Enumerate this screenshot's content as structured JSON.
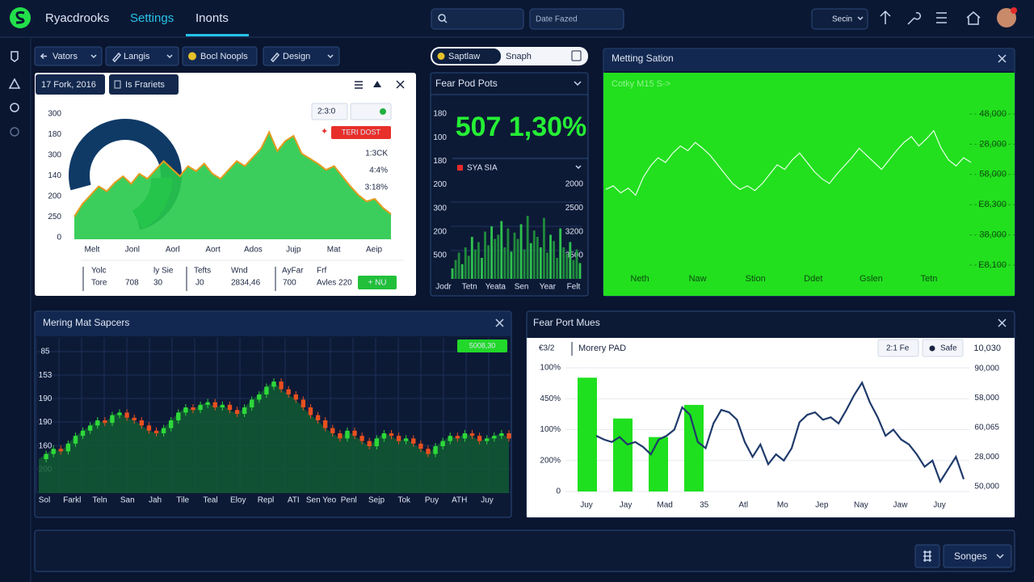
{
  "topbar": {
    "brand": "Ryacdrooks",
    "nav": [
      "Settings",
      "Inonts"
    ],
    "date_filter": "Date Fazed",
    "user_menu": "Secin"
  },
  "toolbar": [
    "Vators",
    "Langis",
    "Bocl Noopls",
    "Design"
  ],
  "search_pill": {
    "label": "Saptlaw",
    "field": "Snaph"
  },
  "panel_1": {
    "tabs": [
      "17 Fork, 2016",
      "Is Frariets"
    ],
    "button": "2:3:0",
    "badge": "TERI DOST",
    "legend": [
      "1:3CK",
      "4:4%",
      "3:18%"
    ],
    "y_labels": [
      "300",
      "180",
      "300",
      "140",
      "200",
      "250",
      "0"
    ],
    "chart": {
      "type": "area",
      "x_labels": [
        "Melt",
        "Jonl",
        "Aorl",
        "Aort",
        "Ados",
        "Jujp",
        "Mat",
        "Aeip"
      ],
      "ylim": [
        0,
        100
      ],
      "values": [
        18,
        28,
        35,
        42,
        38,
        45,
        50,
        44,
        52,
        48,
        55,
        62,
        56,
        50,
        58,
        54,
        60,
        52,
        48,
        55,
        62,
        58,
        65,
        72,
        85,
        70,
        78,
        82,
        68,
        64,
        60,
        55,
        58,
        50,
        42,
        35,
        30,
        32,
        25,
        20
      ]
    },
    "table": {
      "headers": [
        "Yolc",
        "ly Sie",
        "Tefts",
        "Wnd",
        "AyFar",
        "Frf"
      ],
      "row": [
        "Tore",
        "708",
        "30",
        "J0",
        "2834,46",
        "700",
        "Avles 220"
      ],
      "action": "+ NU"
    }
  },
  "panel_2": {
    "title": "Fear Pod Pots",
    "big_value": "507 1,30%",
    "legend": "SYA SIA",
    "y_labels_left": [
      "180",
      "100",
      "180",
      "200",
      "300",
      "200",
      "500"
    ],
    "y_labels_right": [
      "2000",
      "2500",
      "3200",
      "3500"
    ],
    "chart": {
      "type": "bar",
      "x_labels": [
        "Jodr",
        "Tetn",
        "Yeata",
        "Sen",
        "Year",
        "Felt"
      ],
      "ylim": [
        0,
        100
      ],
      "values": [
        10,
        18,
        25,
        14,
        30,
        22,
        40,
        28,
        35,
        20,
        45,
        32,
        50,
        38,
        42,
        55,
        30,
        48,
        26,
        44,
        38,
        52,
        28,
        60,
        34,
        46,
        40,
        30,
        58,
        25,
        42,
        36,
        20,
        48,
        30,
        24,
        35,
        18,
        28,
        15
      ]
    }
  },
  "panel_3": {
    "title": "Metting Sation",
    "subtitle": "Cotky M15 S->",
    "y_labels": [
      "48,000",
      "28,000",
      "58,000",
      "E8,300",
      "38,000",
      "E8,100"
    ],
    "chart": {
      "type": "line",
      "x_labels": [
        "Neth",
        "Naw",
        "Stion",
        "Ddet",
        "Gslen",
        "Tetn"
      ],
      "ylim": [
        0,
        100
      ],
      "values": [
        35,
        38,
        32,
        36,
        30,
        45,
        55,
        62,
        58,
        66,
        72,
        68,
        75,
        70,
        64,
        56,
        48,
        40,
        35,
        38,
        34,
        40,
        48,
        56,
        52,
        60,
        66,
        58,
        50,
        44,
        40,
        48,
        55,
        62,
        70,
        64,
        58,
        52,
        60,
        68,
        75,
        80,
        72,
        78,
        85,
        70,
        60,
        55,
        62,
        58
      ]
    }
  },
  "panel_4": {
    "title": "Mering Mat Sapcers",
    "badge": "5008,30",
    "y_labels": [
      "85",
      "153",
      "190",
      "190",
      "160",
      "200"
    ],
    "chart": {
      "type": "candlestick",
      "x_labels": [
        "Sol",
        "Farkl",
        "Teln",
        "San",
        "Jah",
        "Tile",
        "Teal",
        "Eloy",
        "Repl",
        "ATI",
        "Sen Yeo",
        "Penl",
        "Sejp",
        "Tok",
        "Puy",
        "ATH",
        "Juy"
      ],
      "ylim": [
        0,
        100
      ],
      "values": [
        20,
        24,
        28,
        26,
        32,
        38,
        42,
        46,
        50,
        48,
        54,
        56,
        52,
        50,
        46,
        42,
        40,
        44,
        50,
        56,
        60,
        58,
        62,
        64,
        60,
        62,
        58,
        55,
        60,
        66,
        70,
        76,
        80,
        74,
        70,
        66,
        60,
        54,
        50,
        44,
        40,
        36,
        42,
        38,
        34,
        30,
        36,
        40,
        38,
        34,
        36,
        32,
        28,
        24,
        30,
        34,
        38,
        36,
        40,
        38,
        34,
        36,
        38,
        40,
        36
      ]
    }
  },
  "panel_5": {
    "title": "Fear Port Mues",
    "top_left": "€3/2",
    "series_label": "Morery PAD",
    "buttons": [
      "2:1 Fe",
      "Safe"
    ],
    "top_right": "10,030",
    "y_labels_left": [
      "100%",
      "450%",
      "100%",
      "200%",
      "0"
    ],
    "y_labels_right": [
      "90,000",
      "58,000",
      "60,065",
      "28,000",
      "50,000"
    ],
    "chart": {
      "type": "bar_line",
      "x_labels": [
        "Juy",
        "Jay",
        "Mad",
        "35",
        "Atl",
        "Mo",
        "Jep",
        "Nay",
        "Jaw",
        "Juy"
      ],
      "ylim": [
        0,
        100
      ],
      "bars": [
        92,
        59,
        44,
        70
      ],
      "line": [
        45,
        42,
        40,
        44,
        38,
        40,
        36,
        30,
        42,
        45,
        50,
        68,
        62,
        40,
        35,
        55,
        66,
        64,
        58,
        40,
        28,
        38,
        22,
        30,
        25,
        35,
        56,
        62,
        64,
        58,
        60,
        55,
        66,
        78,
        88,
        72,
        60,
        45,
        50,
        42,
        38,
        30,
        20,
        25,
        8,
        18,
        28,
        10
      ]
    }
  },
  "footer": {
    "menu": "Songes"
  }
}
